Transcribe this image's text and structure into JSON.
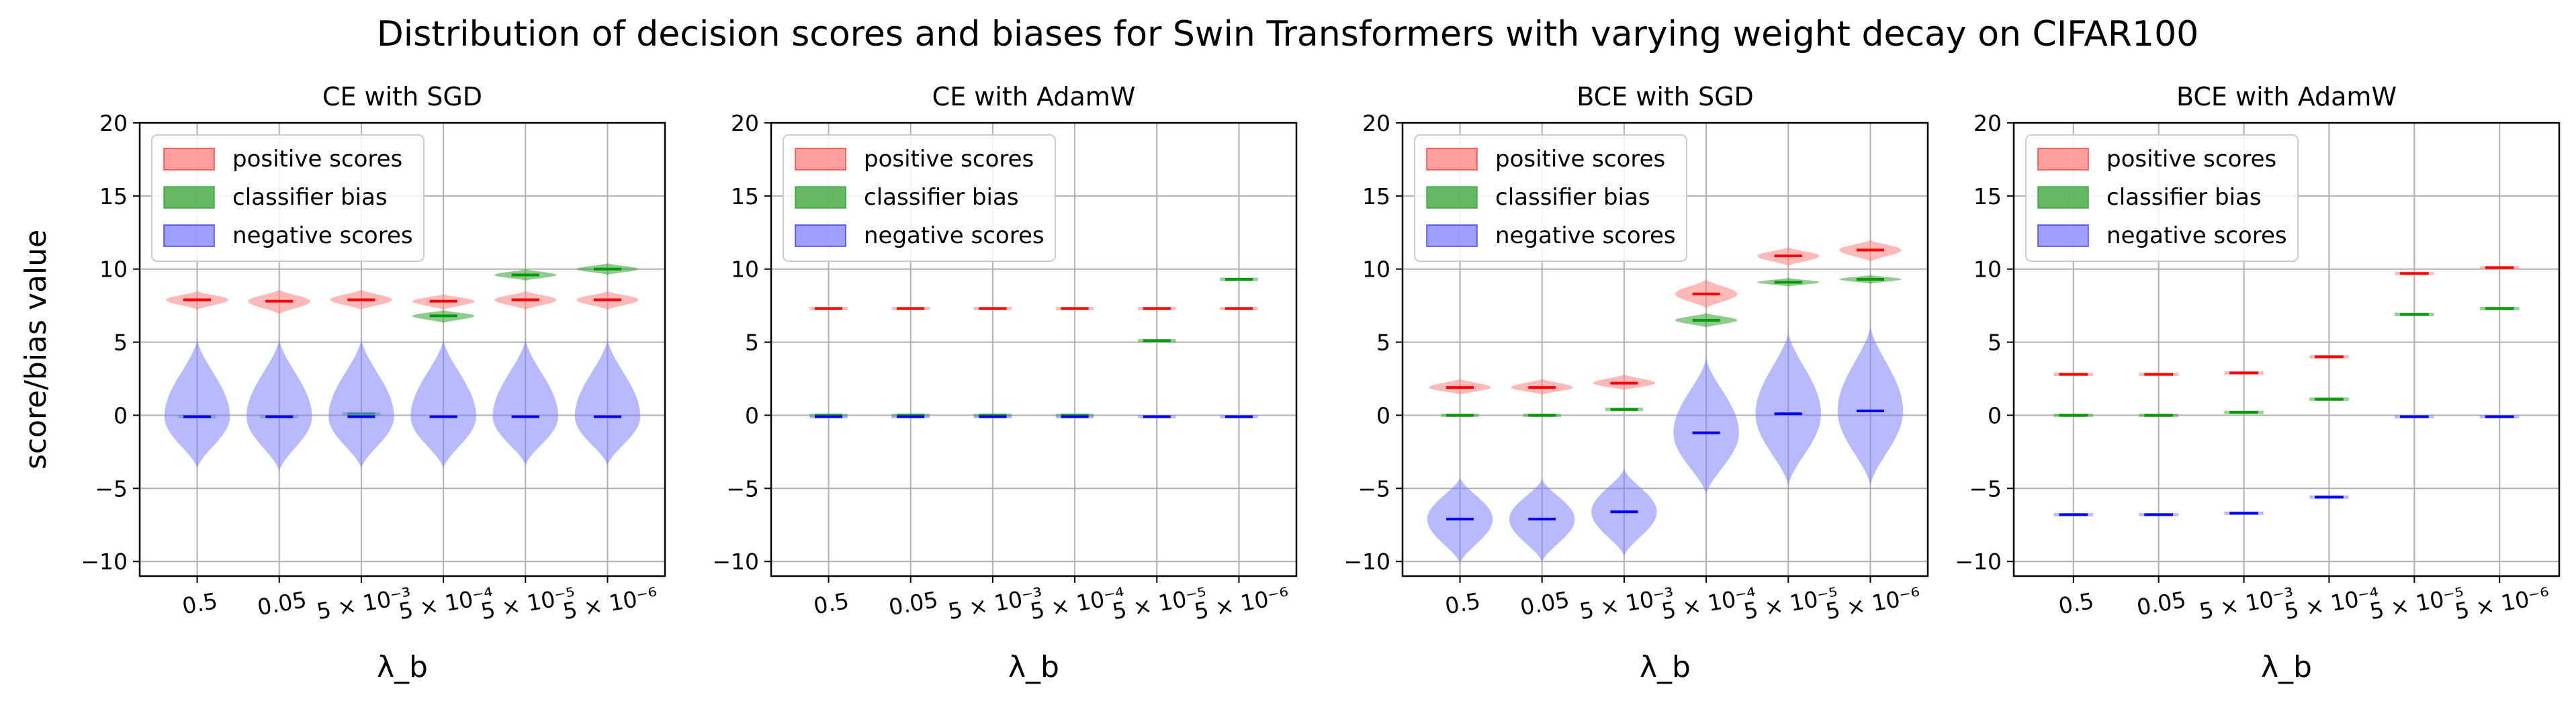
{
  "suptitle": "Distribution of decision scores and biases for Swin Transformers with varying weight decay on CIFAR100",
  "colors": {
    "positive": "#ff0000",
    "bias": "#009900",
    "negative": "#0000ff",
    "positive_fill": "#ff7f7f",
    "bias_fill": "#33a033",
    "negative_fill": "#7f7fff",
    "grid": "#b0b0b0"
  },
  "chart_data": [
    {
      "type": "violin",
      "title": "CE with SGD",
      "xlabel": "λ_b",
      "ylabel": "score/bias value",
      "ylim": [
        -11,
        20
      ],
      "yticks": [
        "−10",
        "−5",
        "0",
        "5",
        "10",
        "15",
        "20"
      ],
      "grid": true,
      "legend_position": "upper left",
      "categories": [
        "0.5",
        "0.05",
        "5 × 10⁻³",
        "5 × 10⁻⁴",
        "5 × 10⁻⁵",
        "5 × 10⁻⁶"
      ],
      "series": [
        {
          "name": "positive scores",
          "medians": [
            7.9,
            7.8,
            7.9,
            7.8,
            7.9,
            7.9
          ],
          "ranges": [
            [
              7.2,
              8.5
            ],
            [
              6.9,
              8.6
            ],
            [
              7.2,
              8.6
            ],
            [
              7.2,
              8.3
            ],
            [
              7.2,
              8.5
            ],
            [
              7.2,
              8.5
            ]
          ]
        },
        {
          "name": "classifier bias",
          "medians": [
            -0.1,
            -0.1,
            0.1,
            6.8,
            9.6,
            10.0
          ],
          "ranges": [
            [
              -0.1,
              -0.1
            ],
            [
              -0.1,
              -0.1
            ],
            [
              0.1,
              0.1
            ],
            [
              6.3,
              7.2
            ],
            [
              9.2,
              10.0
            ],
            [
              9.6,
              10.4
            ]
          ]
        },
        {
          "name": "negative scores",
          "medians": [
            -0.1,
            -0.1,
            -0.1,
            -0.1,
            -0.1,
            -0.1
          ],
          "ranges": [
            [
              -3.7,
              5.3
            ],
            [
              -3.9,
              5.3
            ],
            [
              -3.7,
              5.3
            ],
            [
              -3.7,
              5.3
            ],
            [
              -3.5,
              5.3
            ],
            [
              -3.5,
              5.3
            ]
          ]
        }
      ]
    },
    {
      "type": "violin",
      "title": "CE with AdamW",
      "xlabel": "λ_b",
      "ylabel": "",
      "ylim": [
        -11,
        20
      ],
      "yticks": [
        "−10",
        "−5",
        "0",
        "5",
        "10",
        "15",
        "20"
      ],
      "grid": true,
      "legend_position": "upper left",
      "categories": [
        "0.5",
        "0.05",
        "5 × 10⁻³",
        "5 × 10⁻⁴",
        "5 × 10⁻⁵",
        "5 × 10⁻⁶"
      ],
      "series": [
        {
          "name": "positive scores",
          "medians": [
            7.3,
            7.3,
            7.3,
            7.3,
            7.3,
            7.3
          ],
          "ranges": [
            [
              7.3,
              7.3
            ],
            [
              7.3,
              7.3
            ],
            [
              7.3,
              7.3
            ],
            [
              7.3,
              7.3
            ],
            [
              7.3,
              7.3
            ],
            [
              7.3,
              7.3
            ]
          ]
        },
        {
          "name": "classifier bias",
          "medians": [
            0.0,
            0.0,
            0.0,
            0.0,
            5.1,
            9.3
          ],
          "ranges": [
            [
              0.0,
              0.0
            ],
            [
              0.0,
              0.0
            ],
            [
              0.0,
              0.0
            ],
            [
              0.0,
              0.0
            ],
            [
              5.1,
              5.1
            ],
            [
              9.3,
              9.3
            ]
          ]
        },
        {
          "name": "negative scores",
          "medians": [
            -0.1,
            -0.1,
            -0.1,
            -0.1,
            -0.1,
            -0.1
          ],
          "ranges": [
            [
              -0.1,
              -0.1
            ],
            [
              -0.1,
              -0.1
            ],
            [
              -0.1,
              -0.1
            ],
            [
              -0.1,
              -0.1
            ],
            [
              -0.1,
              -0.1
            ],
            [
              -0.1,
              -0.1
            ]
          ]
        }
      ]
    },
    {
      "type": "violin",
      "title": "BCE with SGD",
      "xlabel": "λ_b",
      "ylabel": "",
      "ylim": [
        -11,
        20
      ],
      "yticks": [
        "−10",
        "−5",
        "0",
        "5",
        "10",
        "15",
        "20"
      ],
      "grid": true,
      "legend_position": "upper left",
      "categories": [
        "0.5",
        "0.05",
        "5 × 10⁻³",
        "5 × 10⁻⁴",
        "5 × 10⁻⁵",
        "5 × 10⁻⁶"
      ],
      "series": [
        {
          "name": "positive scores",
          "medians": [
            1.9,
            1.9,
            2.2,
            8.3,
            10.9,
            11.3
          ],
          "ranges": [
            [
              1.4,
              2.5
            ],
            [
              1.4,
              2.5
            ],
            [
              1.7,
              2.8
            ],
            [
              7.3,
              9.3
            ],
            [
              10.2,
              11.5
            ],
            [
              10.5,
              12.0
            ]
          ]
        },
        {
          "name": "classifier bias",
          "medians": [
            0.0,
            0.0,
            0.4,
            6.5,
            9.1,
            9.3
          ],
          "ranges": [
            [
              0.0,
              0.0
            ],
            [
              0.0,
              0.0
            ],
            [
              0.4,
              0.4
            ],
            [
              6.0,
              7.0
            ],
            [
              8.8,
              9.4
            ],
            [
              9.0,
              9.6
            ]
          ]
        },
        {
          "name": "negative scores",
          "medians": [
            -7.1,
            -7.1,
            -6.6,
            -1.2,
            0.1,
            0.3
          ],
          "ranges": [
            [
              -10.2,
              -4.2
            ],
            [
              -10.1,
              -4.3
            ],
            [
              -9.7,
              -3.6
            ],
            [
              -5.5,
              4.0
            ],
            [
              -4.9,
              5.8
            ],
            [
              -4.9,
              6.2
            ]
          ]
        }
      ]
    },
    {
      "type": "violin",
      "title": "BCE with AdamW",
      "xlabel": "λ_b",
      "ylabel": "",
      "ylim": [
        -11,
        20
      ],
      "yticks": [
        "−10",
        "−5",
        "0",
        "5",
        "10",
        "15",
        "20"
      ],
      "grid": true,
      "legend_position": "upper left",
      "categories": [
        "0.5",
        "0.05",
        "5 × 10⁻³",
        "5 × 10⁻⁴",
        "5 × 10⁻⁵",
        "5 × 10⁻⁶"
      ],
      "series": [
        {
          "name": "positive scores",
          "medians": [
            2.8,
            2.8,
            2.9,
            4.0,
            9.7,
            10.1
          ],
          "ranges": [
            [
              2.8,
              2.8
            ],
            [
              2.8,
              2.8
            ],
            [
              2.9,
              2.9
            ],
            [
              4.0,
              4.0
            ],
            [
              9.7,
              9.7
            ],
            [
              10.1,
              10.1
            ]
          ]
        },
        {
          "name": "classifier bias",
          "medians": [
            0.0,
            0.0,
            0.2,
            1.1,
            6.9,
            7.3
          ],
          "ranges": [
            [
              0.0,
              0.0
            ],
            [
              0.0,
              0.0
            ],
            [
              0.2,
              0.2
            ],
            [
              1.1,
              1.1
            ],
            [
              6.9,
              6.9
            ],
            [
              7.3,
              7.3
            ]
          ]
        },
        {
          "name": "negative scores",
          "medians": [
            -6.8,
            -6.8,
            -6.7,
            -5.6,
            -0.1,
            -0.1
          ],
          "ranges": [
            [
              -6.8,
              -6.8
            ],
            [
              -6.8,
              -6.8
            ],
            [
              -6.7,
              -6.7
            ],
            [
              -5.6,
              -5.6
            ],
            [
              -0.1,
              -0.1
            ],
            [
              -0.1,
              -0.1
            ]
          ]
        }
      ]
    }
  ]
}
